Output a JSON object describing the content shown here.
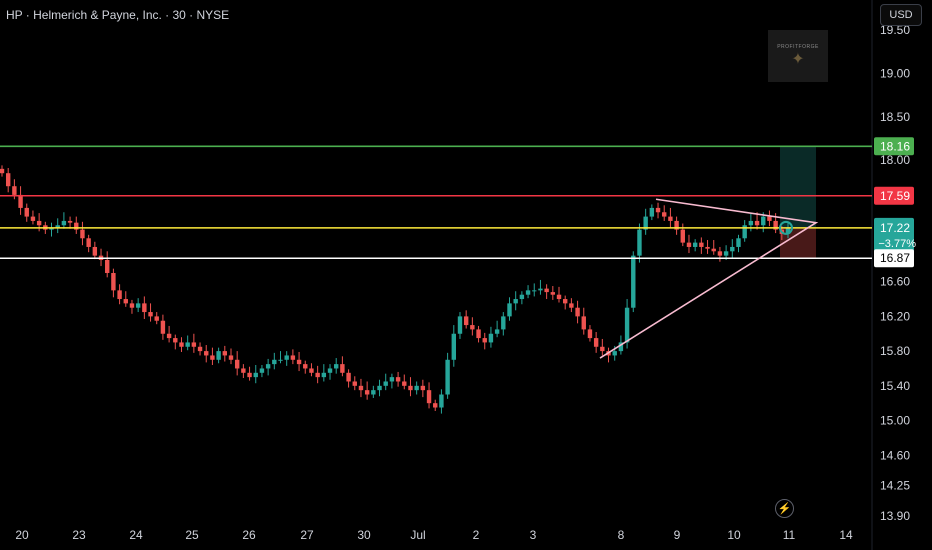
{
  "header": {
    "title": "HP · Helmerich & Payne, Inc. · 30 · NYSE",
    "currency": "USD"
  },
  "watermark": {
    "text": "PROFITFORGE",
    "icon": "eagle-icon"
  },
  "bolt_icon": "lightning-icon",
  "colors": {
    "background": "#000000",
    "up": "#26a69a",
    "down": "#ef5350",
    "target_line": "#4caf50",
    "stop_line": "#f23645",
    "entry_line": "#ffeb3b",
    "support_line": "#ffffff",
    "triangle": "#f8bbd0"
  },
  "chart_data": {
    "type": "candlestick",
    "symbol": "HP",
    "timeframe": "30",
    "y_ticks": [
      "19.50",
      "19.00",
      "18.50",
      "18.00",
      "17.60",
      "16.60",
      "16.20",
      "15.80",
      "15.40",
      "15.00",
      "14.60",
      "14.25",
      "13.90"
    ],
    "ylim": [
      13.9,
      19.5
    ],
    "x_ticks": [
      "20",
      "23",
      "24",
      "25",
      "26",
      "27",
      "30",
      "Jul",
      "2",
      "3",
      "8",
      "9",
      "10",
      "11",
      "14"
    ],
    "price_labels": [
      {
        "name": "target",
        "value": 18.16,
        "text": "18.16",
        "color": "#4caf50"
      },
      {
        "name": "stop",
        "value": 17.59,
        "text": "17.59",
        "color": "#f23645"
      },
      {
        "name": "last",
        "value": 17.22,
        "text": "17.22",
        "change": "−3.77%",
        "color": "#26a69a"
      },
      {
        "name": "support",
        "value": 16.87,
        "text": "16.87",
        "color": "#ffffff"
      }
    ],
    "closes": [
      17.85,
      17.7,
      17.6,
      17.45,
      17.35,
      17.3,
      17.25,
      17.2,
      17.22,
      17.25,
      17.3,
      17.28,
      17.2,
      17.1,
      17.0,
      16.9,
      16.85,
      16.7,
      16.5,
      16.4,
      16.35,
      16.3,
      16.35,
      16.25,
      16.2,
      16.15,
      16.0,
      15.95,
      15.9,
      15.85,
      15.9,
      15.85,
      15.8,
      15.75,
      15.7,
      15.8,
      15.75,
      15.7,
      15.6,
      15.55,
      15.5,
      15.55,
      15.6,
      15.65,
      15.7,
      15.7,
      15.75,
      15.7,
      15.65,
      15.6,
      15.55,
      15.5,
      15.55,
      15.6,
      15.65,
      15.55,
      15.45,
      15.4,
      15.35,
      15.3,
      15.35,
      15.4,
      15.45,
      15.5,
      15.45,
      15.4,
      15.35,
      15.4,
      15.35,
      15.2,
      15.15,
      15.3,
      15.7,
      16.0,
      16.2,
      16.1,
      16.05,
      15.95,
      15.9,
      16.0,
      16.05,
      16.2,
      16.35,
      16.4,
      16.45,
      16.5,
      16.5,
      16.52,
      16.48,
      16.45,
      16.4,
      16.35,
      16.3,
      16.2,
      16.05,
      15.95,
      15.85,
      15.8,
      15.75,
      15.8,
      15.9,
      16.3,
      16.9,
      17.2,
      17.35,
      17.45,
      17.4,
      17.35,
      17.3,
      17.2,
      17.05,
      17.0,
      17.05,
      17.0,
      16.98,
      16.95,
      16.9,
      16.95,
      17.0,
      17.1,
      17.25,
      17.3,
      17.25,
      17.35,
      17.3,
      17.2,
      17.15,
      17.22
    ]
  }
}
